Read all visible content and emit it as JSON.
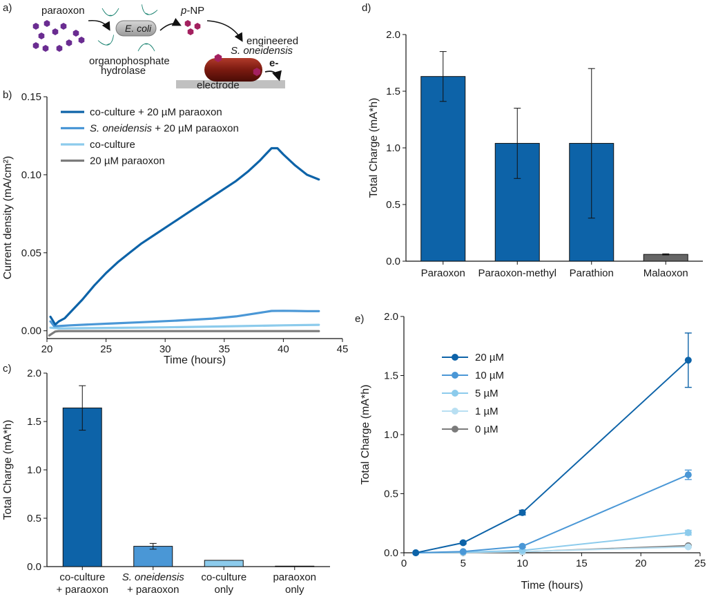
{
  "colors": {
    "dark_blue": "#0d63a8",
    "mid_blue": "#4a97d6",
    "light_blue": "#8ccbec",
    "pale_blue": "#b8dff2",
    "gray": "#7b7b7b",
    "bar_gray": "#666666",
    "teal": "#2bb39b",
    "magenta": "#a3205f",
    "purple": "#6a2c91",
    "cell_red": "#7a1a10"
  },
  "panels": {
    "a": "a)",
    "b": "b)",
    "c": "c)",
    "d": "d)",
    "e": "e)"
  },
  "schematic": {
    "paraoxon": "paraoxon",
    "ecoli": "E. coli",
    "pnp_p": "p",
    "pnp_rest": "-NP",
    "engineered": "engineered",
    "soneidensis": "S. oneidensis",
    "electron": "e-",
    "oph_line1": "organophosphate",
    "oph_line2": "hydrolase",
    "electrode": "electrode"
  },
  "chart_data": [
    {
      "panel": "b",
      "type": "line",
      "xlabel": "Time (hours)",
      "ylabel": "Current density (mA/cm²)",
      "xlim": [
        20,
        45
      ],
      "ylim": [
        -0.005,
        0.15
      ],
      "xticks": [
        "20",
        "25",
        "30",
        "35",
        "40",
        "45"
      ],
      "yticks": [
        "0.00",
        "0.05",
        "0.10",
        "0.15"
      ],
      "legend_position": "top-left",
      "series": [
        {
          "name": "co-culture + 20 µM paraoxon",
          "name_italic": "",
          "name_rest": "co-culture + 20 µM paraoxon",
          "color": "#0d63a8",
          "x": [
            20.3,
            20.7,
            21,
            21.5,
            22,
            23,
            24,
            25,
            26,
            27,
            28,
            29,
            30,
            31,
            32,
            33,
            34,
            35,
            36,
            37,
            38,
            38.5,
            39,
            39.5,
            40,
            41,
            42,
            43
          ],
          "y": [
            0.009,
            0.004,
            0.006,
            0.008,
            0.012,
            0.02,
            0.029,
            0.037,
            0.044,
            0.05,
            0.056,
            0.061,
            0.066,
            0.071,
            0.076,
            0.081,
            0.086,
            0.091,
            0.096,
            0.102,
            0.109,
            0.113,
            0.117,
            0.117,
            0.113,
            0.106,
            0.1,
            0.097
          ]
        },
        {
          "name": "S. oneidensis + 20 µM paraoxon",
          "name_italic": "S. oneidensis",
          "name_rest": " + 20 µM paraoxon",
          "color": "#4a97d6",
          "x": [
            20.3,
            20.6,
            21,
            22,
            25,
            28,
            31,
            34,
            36,
            38,
            39,
            40,
            41,
            42,
            43
          ],
          "y": [
            0.006,
            0.003,
            0.003,
            0.0035,
            0.0045,
            0.0055,
            0.0065,
            0.0078,
            0.0092,
            0.0115,
            0.0127,
            0.0128,
            0.0127,
            0.0126,
            0.0126
          ]
        },
        {
          "name": "co-culture",
          "name_italic": "",
          "name_rest": "co-culture",
          "color": "#8ccbec",
          "x": [
            20.3,
            21,
            25,
            30,
            35,
            40,
            43
          ],
          "y": [
            0.002,
            0.0015,
            0.0018,
            0.0022,
            0.0028,
            0.0035,
            0.0038
          ]
        },
        {
          "name": "20 µM paraoxon",
          "name_italic": "",
          "name_rest": "20 µM paraoxon",
          "color": "#7b7b7b",
          "x": [
            20.2,
            20.4,
            20.7,
            21,
            25,
            30,
            35,
            40,
            43
          ],
          "y": [
            -0.003,
            -0.002,
            -0.0005,
            -0.0002,
            -0.0002,
            -0.0002,
            -0.0002,
            -0.0002,
            -0.0002
          ]
        }
      ]
    },
    {
      "panel": "c",
      "type": "bar",
      "xlabel": "",
      "ylabel": "Total Charge (mA*h)",
      "ylim": [
        0,
        2.0
      ],
      "yticks": [
        "0.0",
        "0.5",
        "1.0",
        "1.5",
        "2.0"
      ],
      "categories": [
        {
          "line1_italic": "",
          "line1": "co-culture",
          "line2": "+ paraoxon"
        },
        {
          "line1_italic": "S. oneidensis",
          "line1": "",
          "line2": "+ paraoxon"
        },
        {
          "line1_italic": "",
          "line1": "co-culture",
          "line2": "only"
        },
        {
          "line1_italic": "",
          "line1": "paraoxon",
          "line2": "only"
        }
      ],
      "values": [
        1.64,
        0.21,
        0.065,
        0.005
      ],
      "errors": [
        0.23,
        0.03,
        0.0,
        0.0
      ],
      "colors": [
        "#0d63a8",
        "#4a97d6",
        "#8ccbec",
        "#666666"
      ]
    },
    {
      "panel": "d",
      "type": "bar",
      "xlabel": "",
      "ylabel": "Total Charge (mA*h)",
      "ylim": [
        0,
        2.0
      ],
      "yticks": [
        "0.0",
        "0.5",
        "1.0",
        "1.5",
        "2.0"
      ],
      "categories": [
        "Paraoxon",
        "Paraoxon-methyl",
        "Parathion",
        "Malaoxon"
      ],
      "values": [
        1.63,
        1.04,
        1.04,
        0.06
      ],
      "errors": [
        0.22,
        0.31,
        0.66,
        0.005
      ],
      "colors": [
        "#0d63a8",
        "#0d63a8",
        "#0d63a8",
        "#666666"
      ]
    },
    {
      "panel": "e",
      "type": "line",
      "xlabel": "Time (hours)",
      "ylabel": "Total Charge (mA*h)",
      "xlim": [
        0,
        25
      ],
      "ylim": [
        0,
        2.0
      ],
      "xticks": [
        "0",
        "5",
        "10",
        "15",
        "20",
        "25"
      ],
      "yticks": [
        "0.0",
        "0.5",
        "1.0",
        "1.5",
        "2.0"
      ],
      "legend_position": "top-left",
      "series": [
        {
          "name": "20 µM",
          "color": "#0d63a8",
          "x": [
            1,
            5,
            10,
            24
          ],
          "y": [
            0.0,
            0.085,
            0.34,
            1.63
          ],
          "err": [
            0.0,
            0.01,
            0.02,
            0.23
          ]
        },
        {
          "name": "10 µM",
          "color": "#4a97d6",
          "x": [
            1,
            5,
            10,
            24
          ],
          "y": [
            0.0,
            0.01,
            0.055,
            0.66
          ],
          "err": [
            0.0,
            0.0,
            0.01,
            0.04
          ]
        },
        {
          "name": "5 µM",
          "color": "#8ccbec",
          "x": [
            1,
            5,
            10,
            24
          ],
          "y": [
            0.0,
            0.005,
            0.02,
            0.17
          ],
          "err": [
            0.0,
            0.0,
            0.0,
            0.02
          ]
        },
        {
          "name": "1 µM",
          "color": "#b8dff2",
          "x": [
            1,
            5,
            10,
            24
          ],
          "y": [
            0.0,
            0.003,
            0.01,
            0.05
          ],
          "err": [
            0.0,
            0.0,
            0.0,
            0.005
          ]
        },
        {
          "name": "0 µM",
          "color": "#7b7b7b",
          "x": [
            1,
            5,
            10,
            24
          ],
          "y": [
            0.0,
            0.002,
            0.008,
            0.06
          ],
          "err": [
            0.0,
            0.0,
            0.0,
            0.005
          ]
        }
      ]
    }
  ]
}
